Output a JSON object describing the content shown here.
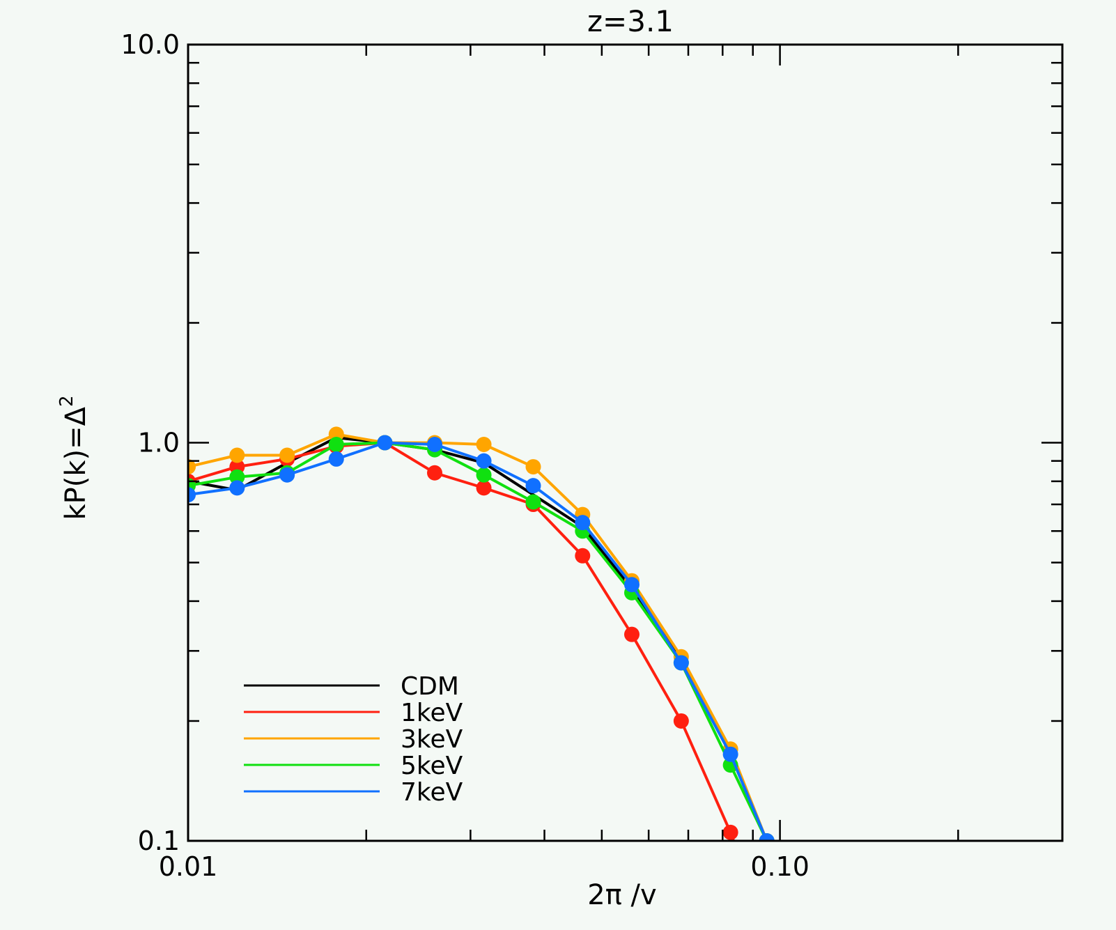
{
  "chart_data": {
    "type": "line",
    "title": "z=3.1",
    "xlabel": "2π /v",
    "ylabel": "kP(k)=Δ",
    "ylabel_superscript": "2",
    "xscale": "log",
    "yscale": "log",
    "xlim": [
      0.01,
      0.3
    ],
    "ylim": [
      0.1,
      10.0
    ],
    "x_tick_labels": [
      {
        "value": 0.01,
        "label": "0.01"
      },
      {
        "value": 0.1,
        "label": "0.10"
      }
    ],
    "y_tick_labels": [
      {
        "value": 0.1,
        "label": "0.1"
      },
      {
        "value": 1.0,
        "label": "1.0"
      },
      {
        "value": 10.0,
        "label": "10.0"
      }
    ],
    "grid": false,
    "legend_position": "bottom-left",
    "series": [
      {
        "name": "CDM",
        "color": "#000000",
        "marker": "none",
        "x": [
          0.01,
          0.0121,
          0.0147,
          0.0178,
          0.0215,
          0.0261,
          0.0316,
          0.0383,
          0.0464,
          0.0562,
          0.0681,
          0.0825,
          0.095
        ],
        "y": [
          0.8,
          0.76,
          0.89,
          1.03,
          1.0,
          0.96,
          0.89,
          0.74,
          0.615,
          0.43,
          0.285,
          0.165,
          0.1
        ]
      },
      {
        "name": "1keV",
        "color": "#ff2010",
        "marker": "circle",
        "x": [
          0.01,
          0.0121,
          0.0147,
          0.0178,
          0.0215,
          0.0261,
          0.0316,
          0.0383,
          0.0464,
          0.0562,
          0.0681,
          0.0825,
          0.085
        ],
        "y": [
          0.8,
          0.87,
          0.91,
          0.98,
          1.0,
          0.84,
          0.77,
          0.7,
          0.52,
          0.33,
          0.2,
          0.105,
          0.093
        ]
      },
      {
        "name": "3keV",
        "color": "#ffa500",
        "marker": "circle",
        "x": [
          0.01,
          0.0121,
          0.0147,
          0.0178,
          0.0215,
          0.0261,
          0.0316,
          0.0383,
          0.0464,
          0.0562,
          0.0681,
          0.0825,
          0.095
        ],
        "y": [
          0.87,
          0.93,
          0.93,
          1.05,
          1.0,
          1.0,
          0.99,
          0.87,
          0.66,
          0.45,
          0.29,
          0.17,
          0.1
        ]
      },
      {
        "name": "5keV",
        "color": "#10e010",
        "marker": "circle",
        "x": [
          0.01,
          0.0121,
          0.0147,
          0.0178,
          0.0215,
          0.0261,
          0.0316,
          0.0383,
          0.0464,
          0.0562,
          0.0681,
          0.0825,
          0.095
        ],
        "y": [
          0.78,
          0.82,
          0.84,
          0.99,
          1.0,
          0.96,
          0.83,
          0.71,
          0.6,
          0.42,
          0.28,
          0.155,
          0.1
        ]
      },
      {
        "name": "7keV",
        "color": "#1070ff",
        "marker": "circle",
        "x": [
          0.01,
          0.0121,
          0.0147,
          0.0178,
          0.0215,
          0.0261,
          0.0316,
          0.0383,
          0.0464,
          0.0562,
          0.0681,
          0.0825,
          0.095
        ],
        "y": [
          0.74,
          0.77,
          0.83,
          0.91,
          1.0,
          0.99,
          0.9,
          0.78,
          0.63,
          0.44,
          0.28,
          0.165,
          0.1
        ]
      }
    ]
  }
}
